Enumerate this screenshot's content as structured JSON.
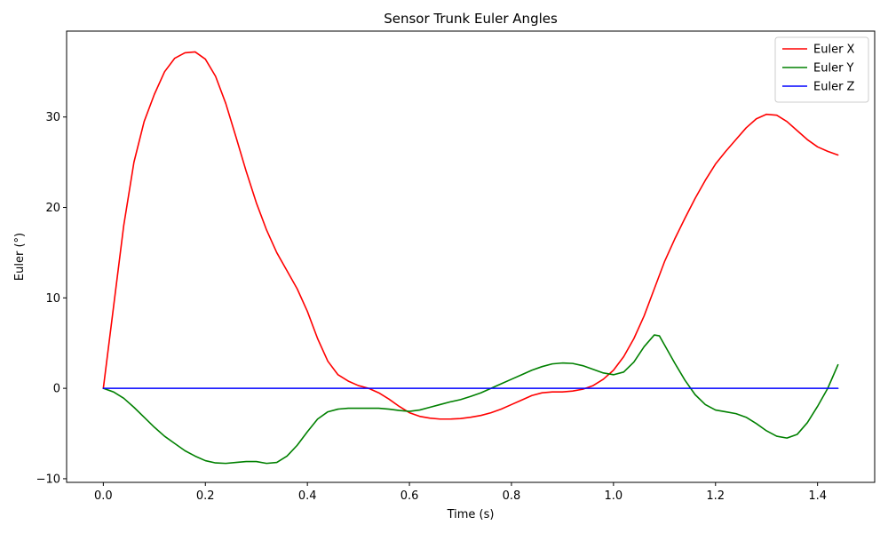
{
  "chart_data": {
    "type": "line",
    "title": "Sensor Trunk Euler Angles",
    "xlabel": "Time (s)",
    "ylabel": "Euler (°)",
    "xlim": [
      -0.072,
      1.512
    ],
    "ylim": [
      -10.4,
      39.5
    ],
    "xticks": [
      0.0,
      0.2,
      0.4,
      0.6,
      0.8,
      1.0,
      1.2,
      1.4
    ],
    "xtick_labels": [
      "0.0",
      "0.2",
      "0.4",
      "0.6",
      "0.8",
      "1.0",
      "1.2",
      "1.4"
    ],
    "yticks": [
      -10,
      0,
      10,
      20,
      30
    ],
    "ytick_labels": [
      "−10",
      "0",
      "10",
      "20",
      "30"
    ],
    "grid": false,
    "legend_position": "top-right",
    "series": [
      {
        "name": "Euler X",
        "color": "#ff0000",
        "points": [
          [
            0.0,
            0.0
          ],
          [
            0.02,
            9.0
          ],
          [
            0.04,
            18.0
          ],
          [
            0.06,
            25.0
          ],
          [
            0.08,
            29.5
          ],
          [
            0.1,
            32.5
          ],
          [
            0.12,
            35.0
          ],
          [
            0.14,
            36.5
          ],
          [
            0.16,
            37.1
          ],
          [
            0.18,
            37.2
          ],
          [
            0.2,
            36.4
          ],
          [
            0.22,
            34.5
          ],
          [
            0.24,
            31.5
          ],
          [
            0.26,
            27.8
          ],
          [
            0.28,
            24.0
          ],
          [
            0.3,
            20.5
          ],
          [
            0.32,
            17.5
          ],
          [
            0.34,
            15.0
          ],
          [
            0.36,
            13.0
          ],
          [
            0.38,
            11.0
          ],
          [
            0.4,
            8.5
          ],
          [
            0.42,
            5.5
          ],
          [
            0.44,
            3.0
          ],
          [
            0.46,
            1.5
          ],
          [
            0.48,
            0.8
          ],
          [
            0.5,
            0.3
          ],
          [
            0.52,
            0.0
          ],
          [
            0.54,
            -0.5
          ],
          [
            0.56,
            -1.2
          ],
          [
            0.58,
            -2.0
          ],
          [
            0.6,
            -2.7
          ],
          [
            0.62,
            -3.1
          ],
          [
            0.64,
            -3.3
          ],
          [
            0.66,
            -3.4
          ],
          [
            0.68,
            -3.4
          ],
          [
            0.7,
            -3.35
          ],
          [
            0.72,
            -3.2
          ],
          [
            0.74,
            -3.0
          ],
          [
            0.76,
            -2.7
          ],
          [
            0.78,
            -2.3
          ],
          [
            0.8,
            -1.8
          ],
          [
            0.82,
            -1.3
          ],
          [
            0.84,
            -0.8
          ],
          [
            0.86,
            -0.5
          ],
          [
            0.88,
            -0.4
          ],
          [
            0.9,
            -0.4
          ],
          [
            0.92,
            -0.3
          ],
          [
            0.94,
            -0.1
          ],
          [
            0.96,
            0.3
          ],
          [
            0.98,
            1.0
          ],
          [
            1.0,
            2.0
          ],
          [
            1.02,
            3.5
          ],
          [
            1.04,
            5.5
          ],
          [
            1.06,
            8.0
          ],
          [
            1.08,
            11.0
          ],
          [
            1.1,
            14.0
          ],
          [
            1.12,
            16.5
          ],
          [
            1.14,
            18.8
          ],
          [
            1.16,
            21.0
          ],
          [
            1.18,
            23.0
          ],
          [
            1.2,
            24.8
          ],
          [
            1.22,
            26.2
          ],
          [
            1.24,
            27.5
          ],
          [
            1.26,
            28.8
          ],
          [
            1.28,
            29.8
          ],
          [
            1.3,
            30.3
          ],
          [
            1.32,
            30.2
          ],
          [
            1.34,
            29.5
          ],
          [
            1.36,
            28.5
          ],
          [
            1.38,
            27.5
          ],
          [
            1.4,
            26.7
          ],
          [
            1.42,
            26.2
          ],
          [
            1.44,
            25.8
          ]
        ]
      },
      {
        "name": "Euler Y",
        "color": "#008000",
        "points": [
          [
            0.0,
            0.0
          ],
          [
            0.02,
            -0.4
          ],
          [
            0.04,
            -1.1
          ],
          [
            0.06,
            -2.1
          ],
          [
            0.08,
            -3.2
          ],
          [
            0.1,
            -4.3
          ],
          [
            0.12,
            -5.3
          ],
          [
            0.14,
            -6.1
          ],
          [
            0.16,
            -6.9
          ],
          [
            0.18,
            -7.5
          ],
          [
            0.2,
            -8.0
          ],
          [
            0.22,
            -8.25
          ],
          [
            0.24,
            -8.3
          ],
          [
            0.26,
            -8.2
          ],
          [
            0.28,
            -8.1
          ],
          [
            0.3,
            -8.1
          ],
          [
            0.32,
            -8.3
          ],
          [
            0.34,
            -8.2
          ],
          [
            0.36,
            -7.5
          ],
          [
            0.38,
            -6.3
          ],
          [
            0.4,
            -4.8
          ],
          [
            0.42,
            -3.4
          ],
          [
            0.44,
            -2.6
          ],
          [
            0.46,
            -2.3
          ],
          [
            0.48,
            -2.2
          ],
          [
            0.5,
            -2.2
          ],
          [
            0.52,
            -2.2
          ],
          [
            0.54,
            -2.2
          ],
          [
            0.56,
            -2.3
          ],
          [
            0.58,
            -2.45
          ],
          [
            0.6,
            -2.55
          ],
          [
            0.62,
            -2.4
          ],
          [
            0.64,
            -2.1
          ],
          [
            0.66,
            -1.8
          ],
          [
            0.68,
            -1.5
          ],
          [
            0.7,
            -1.25
          ],
          [
            0.72,
            -0.9
          ],
          [
            0.74,
            -0.5
          ],
          [
            0.76,
            0.0
          ],
          [
            0.78,
            0.5
          ],
          [
            0.8,
            1.0
          ],
          [
            0.82,
            1.5
          ],
          [
            0.84,
            2.0
          ],
          [
            0.86,
            2.4
          ],
          [
            0.88,
            2.7
          ],
          [
            0.9,
            2.8
          ],
          [
            0.92,
            2.75
          ],
          [
            0.94,
            2.5
          ],
          [
            0.96,
            2.1
          ],
          [
            0.98,
            1.7
          ],
          [
            1.0,
            1.5
          ],
          [
            1.02,
            1.8
          ],
          [
            1.04,
            2.9
          ],
          [
            1.06,
            4.6
          ],
          [
            1.08,
            5.9
          ],
          [
            1.09,
            5.8
          ],
          [
            1.1,
            4.8
          ],
          [
            1.12,
            2.8
          ],
          [
            1.14,
            0.9
          ],
          [
            1.16,
            -0.7
          ],
          [
            1.18,
            -1.8
          ],
          [
            1.2,
            -2.4
          ],
          [
            1.22,
            -2.6
          ],
          [
            1.24,
            -2.8
          ],
          [
            1.26,
            -3.2
          ],
          [
            1.28,
            -3.9
          ],
          [
            1.3,
            -4.7
          ],
          [
            1.32,
            -5.3
          ],
          [
            1.34,
            -5.5
          ],
          [
            1.36,
            -5.1
          ],
          [
            1.38,
            -3.8
          ],
          [
            1.4,
            -2.0
          ],
          [
            1.42,
            0.0
          ],
          [
            1.44,
            2.6
          ]
        ]
      },
      {
        "name": "Euler Z",
        "color": "#0000ff",
        "points": [
          [
            0.0,
            0.0
          ],
          [
            1.44,
            0.0
          ]
        ]
      }
    ]
  }
}
